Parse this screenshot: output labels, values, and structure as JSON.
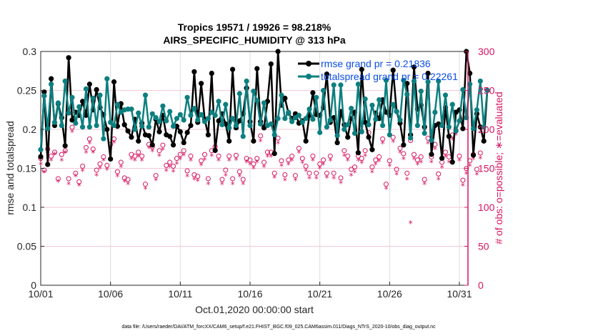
{
  "chart_data": {
    "type": "line",
    "title": [
      "Tropics 19571 / 19926 = 98.218%",
      "AIRS_SPECIFIC_HUMIDITY @ 313 hPa"
    ],
    "xlabel": "Oct.01,2020 00:00:00 start",
    "ylabel": "rmse and totalspread",
    "y2label": "# of obs: o=possible; ∗=evaluated",
    "footnote": "data file: /Users/raeder/DAI/ATM_forcXX/CAM6_setup/f.e21.FHIST_BGC.f09_025.CAM6assim.011/Diags_NTrS_2020-10/obs_diag_output.nc",
    "xlim_days": [
      0,
      31.6
    ],
    "ylim": [
      0,
      0.3
    ],
    "y2lim": [
      0,
      300
    ],
    "xticks": [
      {
        "day": 0,
        "label": "10/01"
      },
      {
        "day": 5,
        "label": "10/06"
      },
      {
        "day": 10,
        "label": "10/11"
      },
      {
        "day": 15,
        "label": "10/16"
      },
      {
        "day": 20,
        "label": "10/21"
      },
      {
        "day": 25,
        "label": "10/26"
      },
      {
        "day": 30,
        "label": "10/31"
      }
    ],
    "yticks": [
      {
        "v": 0,
        "label": "0"
      },
      {
        "v": 0.05,
        "label": "0.05"
      },
      {
        "v": 0.1,
        "label": "0.1"
      },
      {
        "v": 0.15,
        "label": "0.15"
      },
      {
        "v": 0.2,
        "label": "0.2"
      },
      {
        "v": 0.25,
        "label": "0.25"
      },
      {
        "v": 0.3,
        "label": "0.3"
      }
    ],
    "y2ticks": [
      {
        "v": 0,
        "label": "0"
      },
      {
        "v": 50,
        "label": "50"
      },
      {
        "v": 100,
        "label": "100"
      },
      {
        "v": 150,
        "label": "150"
      },
      {
        "v": 200,
        "label": "200"
      },
      {
        "v": 250,
        "label": "250"
      },
      {
        "v": 300,
        "label": "300"
      }
    ],
    "grid": true,
    "legend_position": "top-right",
    "x_step_days": 0.25,
    "series": [
      {
        "name": "rmse grand pr = 0.21836",
        "color": "#000000",
        "axis": "left",
        "values": [
          0.165,
          0.248,
          0.155,
          0.265,
          0.205,
          0.233,
          0.215,
          0.179,
          0.292,
          0.212,
          0.222,
          0.218,
          0.236,
          0.218,
          0.258,
          0.225,
          0.251,
          0.228,
          0.219,
          0.2,
          0.162,
          0.261,
          0.204,
          0.233,
          0.206,
          0.198,
          0.19,
          0.213,
          0.185,
          0.208,
          0.193,
          0.192,
          0.18,
          0.213,
          0.197,
          0.218,
          0.193,
          0.191,
          0.18,
          0.204,
          0.197,
          0.183,
          0.196,
          0.205,
          0.274,
          0.209,
          0.259,
          0.213,
          0.193,
          0.272,
          0.173,
          0.211,
          0.22,
          0.207,
          0.185,
          0.277,
          0.202,
          0.211,
          0.22,
          0.253,
          0.21,
          0.185,
          0.278,
          0.21,
          0.202,
          0.236,
          0.284,
          0.169,
          0.3,
          0.231,
          0.24,
          0.221,
          0.214,
          0.22,
          0.208,
          0.211,
          0.185,
          0.218,
          0.247,
          0.219,
          0.218,
          0.228,
          0.271,
          0.209,
          0.215,
          0.183,
          0.223,
          0.206,
          0.19,
          0.214,
          0.222,
          0.17,
          0.277,
          0.209,
          0.19,
          0.174,
          0.221,
          0.214,
          0.238,
          0.222,
          0.218,
          0.276,
          0.223,
          0.208,
          0.18,
          0.259,
          0.193,
          0.28,
          0.226,
          0.231,
          0.203,
          0.272,
          0.168,
          0.205,
          0.207,
          0.163,
          0.228,
          0.191,
          0.158,
          0.222,
          0.225,
          0.201,
          0.3,
          0.272,
          0.167,
          0.22,
          0.203,
          0.185,
          0.25
        ]
      },
      {
        "name": "totalspread grand pr = 0.22261",
        "color": "#0d7f7f",
        "axis": "left",
        "values": [
          0.174,
          0.243,
          0.201,
          0.258,
          0.209,
          0.234,
          0.205,
          0.262,
          0.221,
          0.241,
          0.208,
          0.229,
          0.203,
          0.252,
          0.203,
          0.24,
          0.205,
          0.244,
          0.188,
          0.265,
          0.209,
          0.205,
          0.232,
          0.222,
          0.225,
          0.226,
          0.226,
          0.2,
          0.221,
          0.204,
          0.244,
          0.203,
          0.22,
          0.215,
          0.21,
          0.23,
          0.211,
          0.223,
          0.204,
          0.214,
          0.219,
          0.212,
          0.241,
          0.218,
          0.227,
          0.212,
          0.219,
          0.21,
          0.214,
          0.222,
          0.218,
          0.236,
          0.206,
          0.232,
          0.202,
          0.214,
          0.205,
          0.246,
          0.191,
          0.262,
          0.205,
          0.249,
          0.237,
          0.207,
          0.234,
          0.205,
          0.207,
          0.193,
          0.214,
          0.244,
          0.214,
          0.222,
          0.21,
          0.215,
          0.218,
          0.209,
          0.214,
          0.226,
          0.213,
          0.241,
          0.196,
          0.25,
          0.203,
          0.212,
          0.257,
          0.192,
          0.257,
          0.2,
          0.206,
          0.227,
          0.195,
          0.258,
          0.197,
          0.239,
          0.206,
          0.231,
          0.213,
          0.238,
          0.205,
          0.263,
          0.193,
          0.232,
          0.223,
          0.212,
          0.263,
          0.245,
          0.189,
          0.262,
          0.205,
          0.249,
          0.195,
          0.261,
          0.186,
          0.222,
          0.262,
          0.205,
          0.244,
          0.203,
          0.232,
          0.198,
          0.211,
          0.251,
          0.215,
          0.258,
          0.201,
          0.225,
          0.262,
          0.203,
          0.25
        ]
      },
      {
        "name": "possible obs",
        "marker": "o",
        "color": "#d6145f",
        "axis": "right",
        "values": [
          160,
          145,
          172,
          163,
          168,
          134,
          165,
          170,
          134,
          200,
          141,
          130,
          150,
          174,
          185,
          172,
          145,
          153,
          162,
          151,
          178,
          185,
          143,
          155,
          135,
          133,
          165,
          163,
          168,
          163,
          127,
          178,
          175,
          138,
          170,
          177,
          151,
          155,
          150,
          160,
          165,
          170,
          144,
          163,
          139,
          137,
          157,
          165,
          134,
          170,
          175,
          163,
          133,
          145,
          163,
          134,
          164,
          143,
          133,
          160,
          158,
          153,
          160,
          189,
          155,
          168,
          168,
          141,
          186,
          157,
          139,
          158,
          163,
          138,
          173,
          160,
          150,
          141,
          163,
          141,
          153,
          158,
          141,
          163,
          141,
          198,
          135,
          170,
          163,
          146,
          149,
          163,
          160,
          170,
          193,
          149,
          158,
          162,
          185,
          127,
          157,
          187,
          146,
          173,
          166,
          141,
          183,
          165,
          158,
          162,
          133,
          186,
          162,
          178,
          140,
          155,
          168,
          162,
          190,
          196,
          163,
          132,
          147,
          157,
          165,
          146,
          167
        ]
      },
      {
        "name": "evaluated obs",
        "marker": "*",
        "color": "#d6145f",
        "axis": "right",
        "values": [
          155,
          145,
          170,
          160,
          168,
          133,
          160,
          170,
          130,
          197,
          140,
          128,
          147,
          170,
          182,
          170,
          141,
          150,
          160,
          148,
          176,
          183,
          140,
          152,
          133,
          130,
          162,
          160,
          165,
          160,
          124,
          176,
          172,
          135,
          166,
          174,
          147,
          152,
          146,
          156,
          162,
          167,
          140,
          160,
          136,
          134,
          154,
          161,
          130,
          166,
          171,
          160,
          130,
          141,
          160,
          130,
          161,
          140,
          130,
          158,
          155,
          150,
          158,
          185,
          152,
          165,
          165,
          138,
          182,
          153,
          135,
          155,
          160,
          135,
          170,
          157,
          147,
          137,
          160,
          137,
          150,
          155,
          138,
          160,
          137,
          196,
          131,
          166,
          160,
          141,
          145,
          160,
          157,
          166,
          190,
          145,
          155,
          159,
          182,
          124,
          153,
          184,
          142,
          170,
          162,
          136,
          80,
          162,
          155,
          158,
          130,
          182,
          158,
          175,
          136,
          151,
          165,
          158,
          187,
          193,
          160,
          128,
          143,
          153,
          162,
          142,
          163
        ]
      }
    ]
  }
}
